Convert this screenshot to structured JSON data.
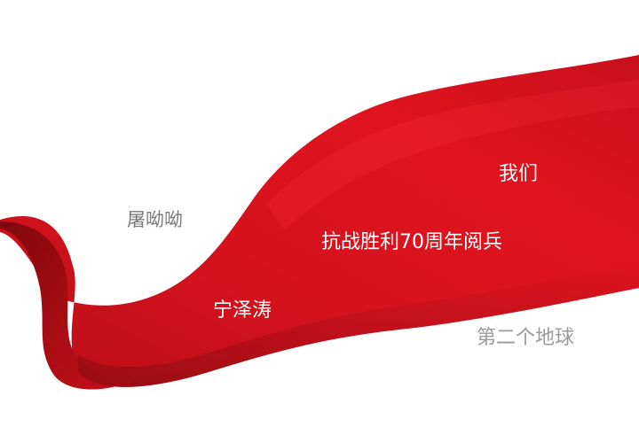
{
  "background_color": "#ffffff",
  "ribbon_colors": {
    "light": "#e0141e",
    "mid": "#c8101a",
    "dark": "#8e0a10"
  },
  "words": {
    "women": "我们",
    "tu": "屠呦呦",
    "kangzhan": "抗战胜利70周年阅兵",
    "ning": "宁泽涛",
    "earth": "第二个地球"
  }
}
